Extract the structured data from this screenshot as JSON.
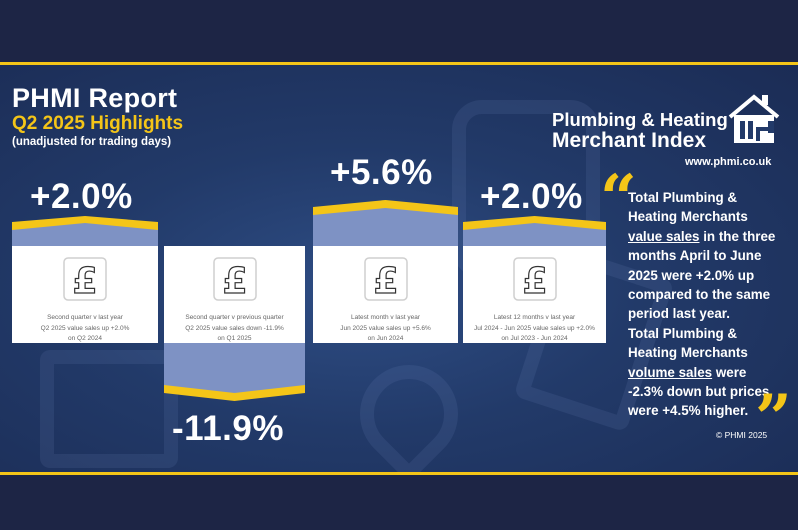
{
  "header": {
    "title": "PHMI Report",
    "subtitle": "Q2 2025 Highlights",
    "note": "(unadjusted for trading days)"
  },
  "logo": {
    "line1": "Plumbing & Heating",
    "line2": "Merchant Index",
    "url": "www.phmi.co.uk"
  },
  "colors": {
    "accent": "#f4c518",
    "background": "#223a69",
    "band": "#1d2545",
    "banner": "#7e92c4"
  },
  "cards": [
    {
      "pct": "+2.0%",
      "direction": "up",
      "icon": "pound-icon",
      "line1": "Second quarter v last year",
      "line2": "Q2 2025 value sales up +2.0%",
      "line3": "on Q2 2024"
    },
    {
      "pct": "-11.9%",
      "direction": "down",
      "icon": "pound-icon",
      "line1": "Second quarter v previous quarter",
      "line2": "Q2 2025 value sales down -11.9%",
      "line3": "on Q1 2025"
    },
    {
      "pct": "+5.6%",
      "direction": "up",
      "icon": "pound-icon",
      "line1": "Latest month v last year",
      "line2": "Jun 2025 value sales up +5.6%",
      "line3": "on Jun 2024"
    },
    {
      "pct": "+2.0%",
      "direction": "up",
      "icon": "pound-icon",
      "line1": "Latest 12 months v last year",
      "line2": "Jul 2024 - Jun 2025 value sales up +2.0%",
      "line3": "on Jul 2023 - Jun 2024"
    }
  ],
  "quote": {
    "lines": [
      {
        "text": "Total Plumbing &",
        "underline": false
      },
      {
        "text": "Heating Merchants",
        "underline": false
      },
      {
        "pre": "",
        "u": "value sales",
        "post": " in the three"
      },
      {
        "text": "months April to June",
        "underline": false
      },
      {
        "text": "2025 were +2.0% up",
        "underline": false
      },
      {
        "text": "compared to the same",
        "underline": false
      },
      {
        "text": "period last year.",
        "underline": false
      },
      {
        "text": "Total Plumbing &",
        "underline": false
      },
      {
        "text": "Heating Merchants",
        "underline": false
      },
      {
        "pre": "",
        "u": "volume sales",
        "post": " were"
      },
      {
        "text": "-2.3% down but prices",
        "underline": false
      },
      {
        "text": "were +4.5% higher.",
        "underline": false
      }
    ],
    "open_mark": "“",
    "close_mark": "”"
  },
  "footer": {
    "copyright": "© PHMI 2025"
  }
}
